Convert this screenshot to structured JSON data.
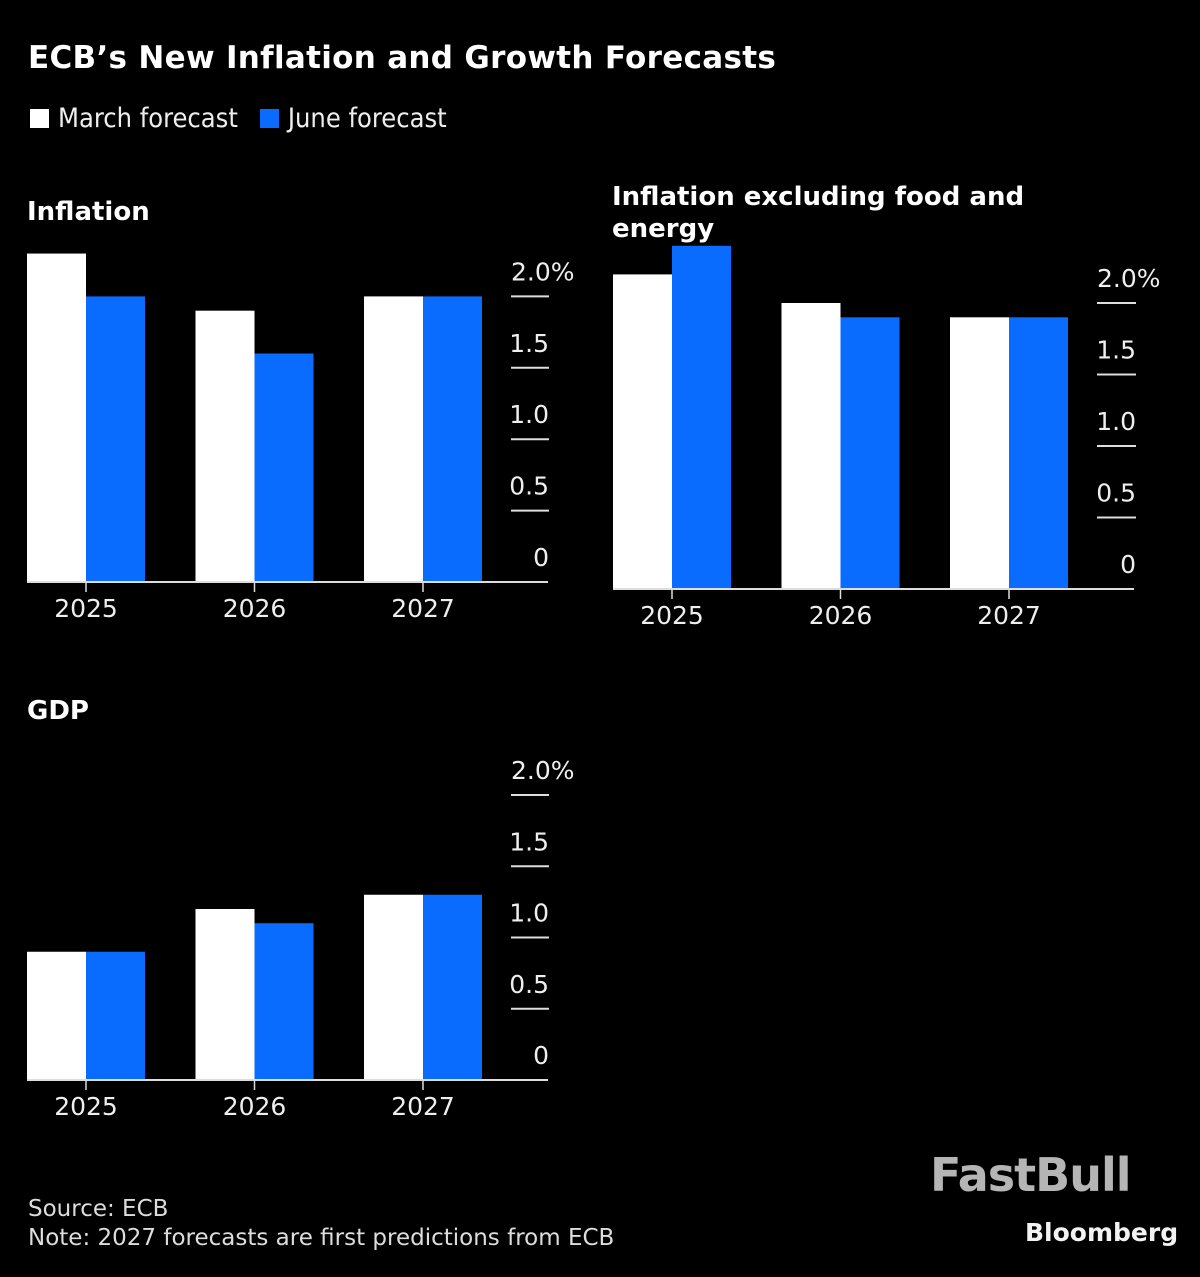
{
  "title": "ECB’s New Inflation and Growth Forecasts",
  "legend": [
    {
      "label": "March forecast",
      "color": "#ffffff"
    },
    {
      "label": "June forecast",
      "color": "#0a6cff"
    }
  ],
  "chart_data": [
    {
      "type": "bar",
      "title": "Inflation",
      "categories": [
        "2025",
        "2026",
        "2027"
      ],
      "series": [
        {
          "name": "March forecast",
          "values": [
            2.3,
            1.9,
            2.0
          ]
        },
        {
          "name": "June forecast",
          "values": [
            2.0,
            1.6,
            2.0
          ]
        }
      ],
      "yticks": [
        "0",
        "0.5",
        "1.0",
        "1.5",
        "2.0%"
      ],
      "ylim": [
        0,
        2.0
      ],
      "xlabel": "",
      "ylabel": "",
      "grid": false,
      "axis_side": "right"
    },
    {
      "type": "bar",
      "title": "Inflation excluding food and energy",
      "categories": [
        "2025",
        "2026",
        "2027"
      ],
      "series": [
        {
          "name": "March forecast",
          "values": [
            2.2,
            2.0,
            1.9
          ]
        },
        {
          "name": "June forecast",
          "values": [
            2.4,
            1.9,
            1.9
          ]
        }
      ],
      "yticks": [
        "0",
        "0.5",
        "1.0",
        "1.5",
        "2.0%"
      ],
      "ylim": [
        0,
        2.0
      ],
      "xlabel": "",
      "ylabel": "",
      "grid": false,
      "axis_side": "right"
    },
    {
      "type": "bar",
      "title": "GDP",
      "categories": [
        "2025",
        "2026",
        "2027"
      ],
      "series": [
        {
          "name": "March forecast",
          "values": [
            0.9,
            1.2,
            1.3
          ]
        },
        {
          "name": "June forecast",
          "values": [
            0.9,
            1.1,
            1.3
          ]
        }
      ],
      "yticks": [
        "0",
        "0.5",
        "1.0",
        "1.5",
        "2.0%"
      ],
      "ylim": [
        0,
        2.0
      ],
      "xlabel": "",
      "ylabel": "",
      "grid": false,
      "axis_side": "right"
    }
  ],
  "footer": {
    "source": "Source: ECB",
    "note": "Note: 2027 forecasts are first predictions from ECB"
  },
  "watermark": "FastBull",
  "brand": "Bloomberg"
}
